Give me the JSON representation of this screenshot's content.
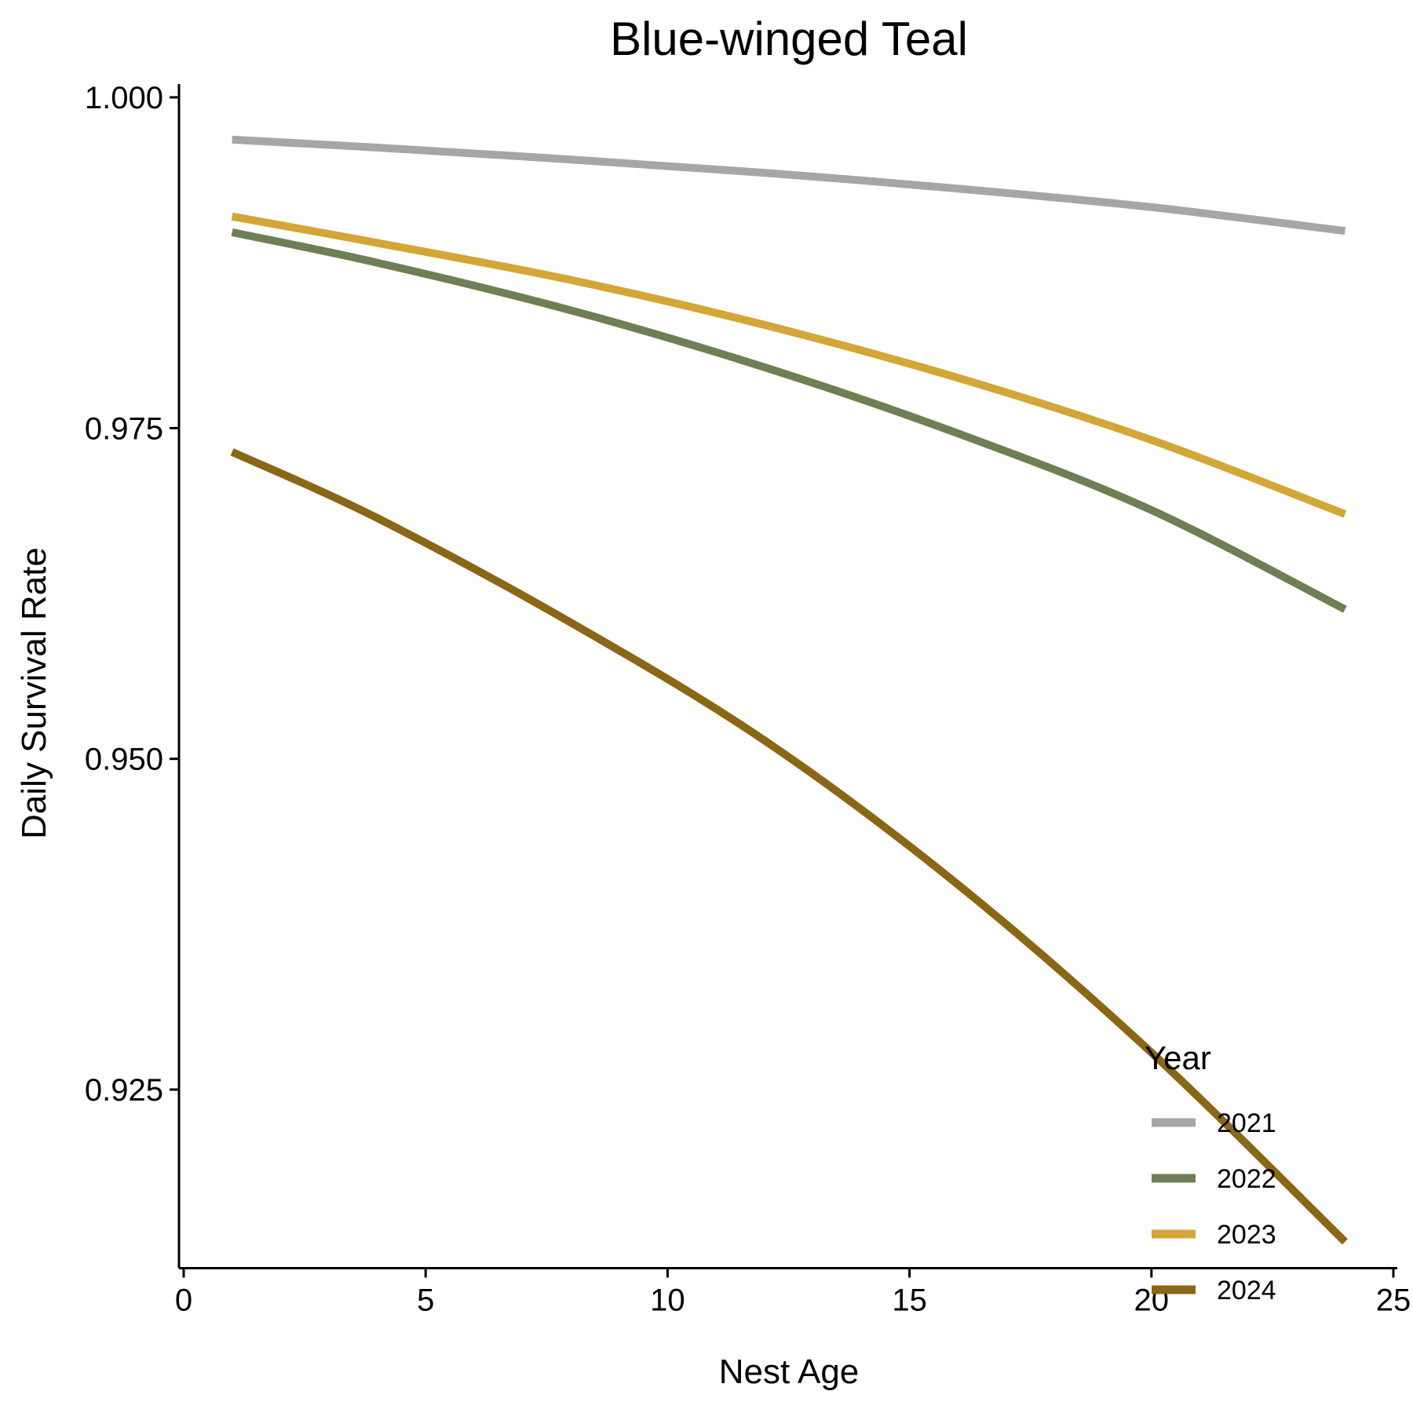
{
  "chart_data": {
    "type": "line",
    "title": "Blue-winged Teal",
    "xlabel": "Nest Age",
    "ylabel": "Daily Survival Rate",
    "xlim": [
      0,
      25
    ],
    "ylim": [
      0.9115,
      1.001
    ],
    "x_ticks": [
      0,
      5,
      10,
      15,
      20,
      25
    ],
    "x_tick_labels": [
      "0",
      "5",
      "10",
      "15",
      "20",
      "25"
    ],
    "y_ticks": [
      0.925,
      0.95,
      0.975,
      1.0
    ],
    "y_tick_labels": [
      "0.925",
      "0.950",
      "0.975",
      "1.000"
    ],
    "grid": false,
    "legend": {
      "title": "Year",
      "position": "bottom-right"
    },
    "x": [
      1,
      4,
      8,
      12,
      16,
      20,
      24
    ],
    "series": [
      {
        "name": "2021",
        "color": "#a6a6a6",
        "values": [
          0.9968,
          0.9962,
          0.9953,
          0.9943,
          0.9931,
          0.9917,
          0.9899
        ]
      },
      {
        "name": "2022",
        "color": "#6f7f55",
        "values": [
          0.9898,
          0.9875,
          0.9839,
          0.9796,
          0.9746,
          0.9688,
          0.9613
        ]
      },
      {
        "name": "2023",
        "color": "#d4a537",
        "values": [
          0.991,
          0.989,
          0.9862,
          0.9828,
          0.9788,
          0.9741,
          0.9685
        ]
      },
      {
        "name": "2024",
        "color": "#8a6717",
        "values": [
          0.9732,
          0.9682,
          0.9603,
          0.9514,
          0.9405,
          0.9278,
          0.9135
        ]
      }
    ]
  }
}
